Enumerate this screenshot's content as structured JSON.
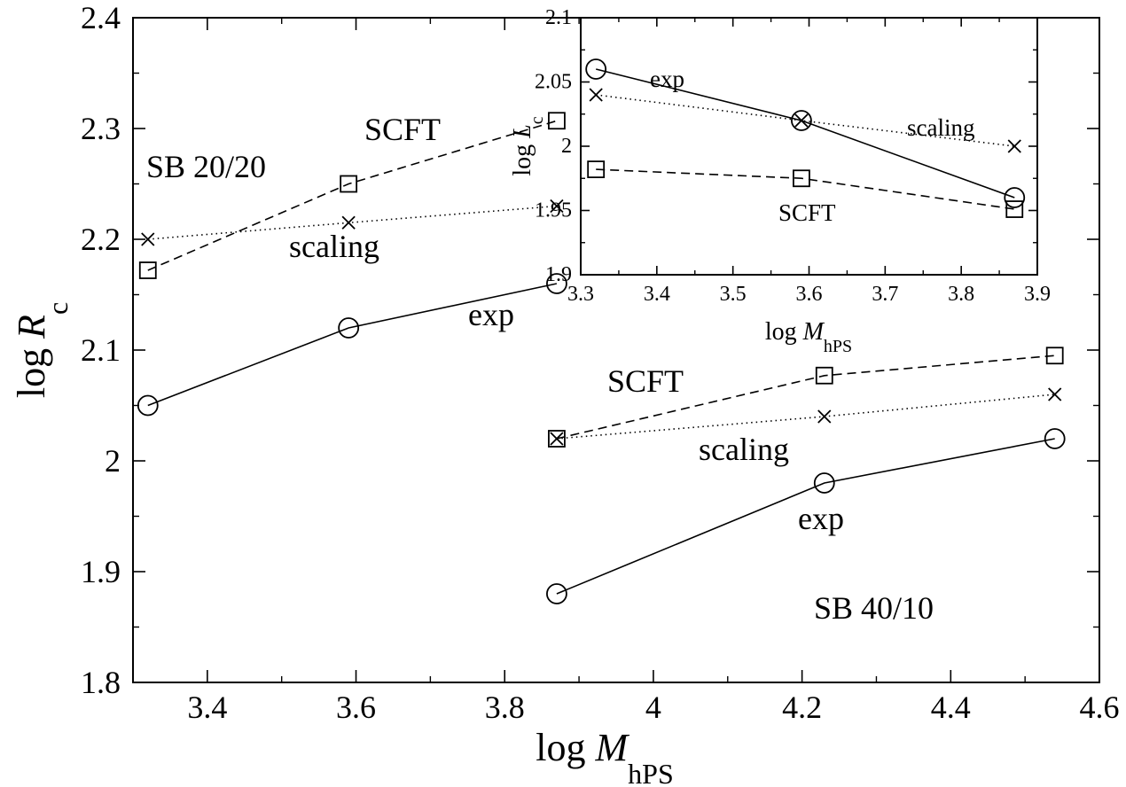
{
  "chart_data": [
    {
      "type": "line",
      "xlim": [
        3.3,
        4.6
      ],
      "ylim": [
        1.8,
        2.4
      ],
      "xticks": [
        3.4,
        3.6,
        3.8,
        4,
        4.2,
        4.4,
        4.6
      ],
      "xtick_labels": [
        "3.4",
        "3.6",
        "3.8",
        "4",
        "4.2",
        "4.4",
        "4.6"
      ],
      "yticks": [
        1.8,
        1.9,
        2,
        2.1,
        2.2,
        2.3,
        2.4
      ],
      "ytick_labels": [
        "1.8",
        "1.9",
        "2",
        "2.1",
        "2.2",
        "2.3",
        "2.4"
      ],
      "xlabel": {
        "base": "log ",
        "var": "M",
        "sub": "hPS"
      },
      "ylabel": {
        "base": "log ",
        "var": "R",
        "sub": "c"
      },
      "series": [
        {
          "group": "SB 20/20",
          "marker": "square",
          "dash": "dashed",
          "x": [
            3.32,
            3.59,
            3.87
          ],
          "y": [
            2.172,
            2.25,
            2.307
          ]
        },
        {
          "group": "SB 20/20",
          "marker": "cross",
          "dash": "dotted",
          "x": [
            3.32,
            3.59,
            3.87
          ],
          "y": [
            2.2,
            2.215,
            2.23
          ]
        },
        {
          "group": "SB 20/20",
          "marker": "circle",
          "dash": "solid",
          "x": [
            3.32,
            3.59,
            3.87
          ],
          "y": [
            2.05,
            2.12,
            2.16
          ]
        },
        {
          "group": "SB 40/10",
          "marker": "square",
          "dash": "dashed",
          "x": [
            3.87,
            4.23,
            4.54
          ],
          "y": [
            2.02,
            2.077,
            2.095
          ]
        },
        {
          "group": "SB 40/10",
          "marker": "cross",
          "dash": "dotted",
          "x": [
            3.87,
            4.23,
            4.54
          ],
          "y": [
            2.02,
            2.04,
            2.06
          ]
        },
        {
          "group": "SB 40/10",
          "marker": "circle",
          "dash": "solid",
          "x": [
            3.87,
            4.23,
            4.54
          ],
          "y": [
            1.88,
            1.98,
            2.02
          ]
        }
      ],
      "annotations": [
        {
          "text": "SB 20/20"
        },
        {
          "text": "SCFT"
        },
        {
          "text": "scaling"
        },
        {
          "text": "exp"
        },
        {
          "text": "SCFT"
        },
        {
          "text": "scaling"
        },
        {
          "text": "exp"
        },
        {
          "text": "SB 40/10"
        }
      ]
    },
    {
      "type": "line",
      "xlim": [
        3.3,
        3.9
      ],
      "ylim": [
        1.9,
        2.1
      ],
      "xticks": [
        3.3,
        3.4,
        3.5,
        3.6,
        3.7,
        3.8,
        3.9
      ],
      "xtick_labels": [
        "3.3",
        "3.4",
        "3.5",
        "3.6",
        "3.7",
        "3.8",
        "3.9"
      ],
      "yticks": [
        1.9,
        1.95,
        2,
        2.05,
        2.1
      ],
      "ytick_labels": [
        "1.9",
        "1.95",
        "2",
        "2.05",
        "2.1"
      ],
      "xlabel": {
        "base": "log ",
        "var": "M",
        "sub": "hPS"
      },
      "ylabel": {
        "base": "log ",
        "var": "L",
        "sub": "c"
      },
      "series": [
        {
          "marker": "circle",
          "dash": "solid",
          "x": [
            3.32,
            3.59,
            3.87
          ],
          "y": [
            2.06,
            2.02,
            1.96
          ]
        },
        {
          "marker": "cross",
          "dash": "dotted",
          "x": [
            3.32,
            3.59,
            3.87
          ],
          "y": [
            2.04,
            2.02,
            2.0
          ]
        },
        {
          "marker": "square",
          "dash": "dashed",
          "x": [
            3.32,
            3.59,
            3.87
          ],
          "y": [
            1.982,
            1.975,
            1.951
          ]
        }
      ],
      "annotations": [
        {
          "text": "exp"
        },
        {
          "text": "scaling"
        },
        {
          "text": "SCFT"
        }
      ]
    }
  ]
}
